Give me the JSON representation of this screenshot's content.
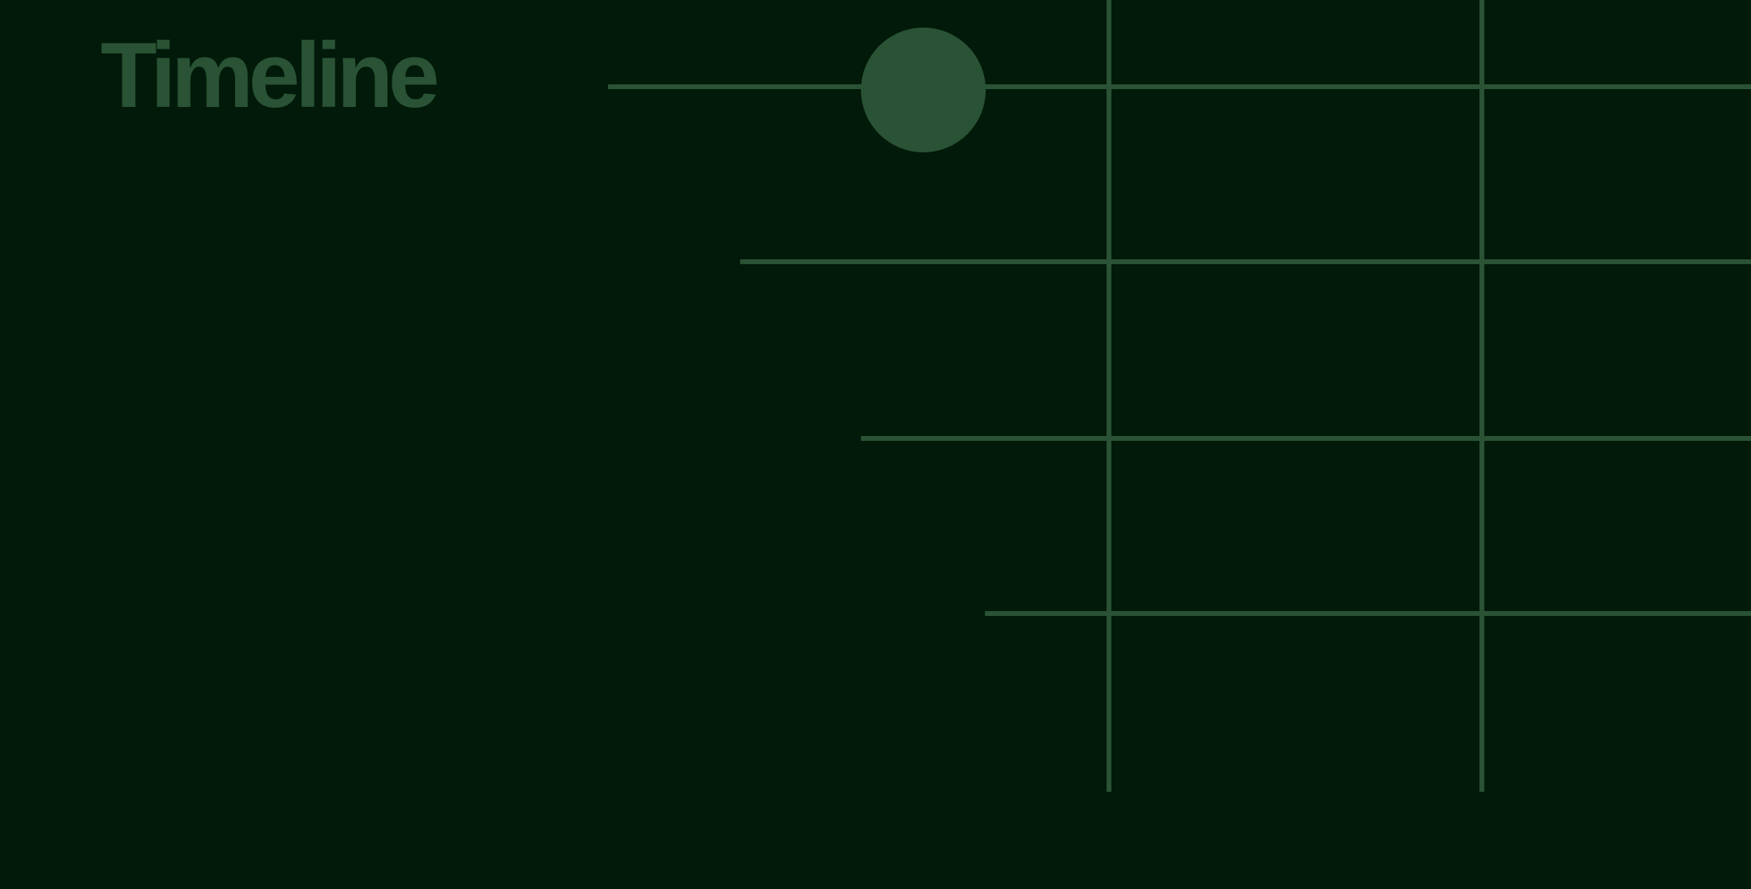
{
  "title": "Timeline",
  "colors": {
    "background": "#011a0a",
    "accent": "#2a5234"
  }
}
